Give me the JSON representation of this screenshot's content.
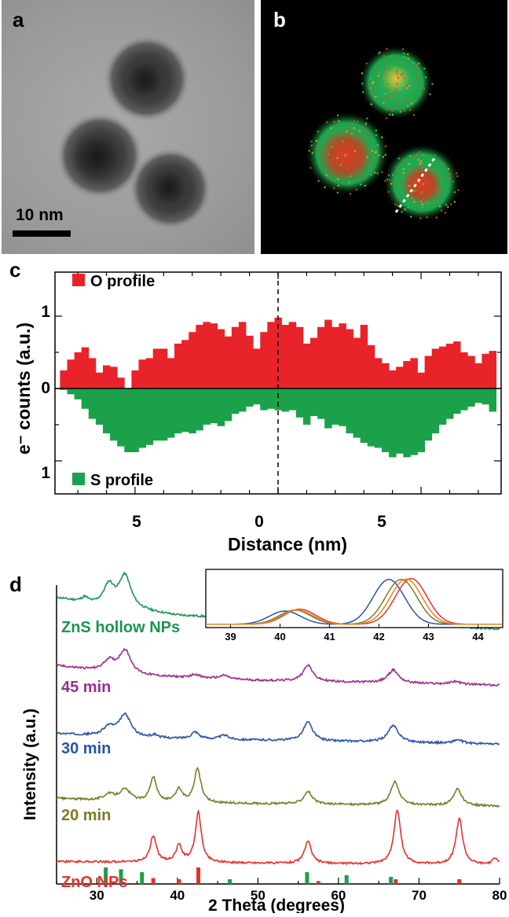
{
  "panel_a": {
    "letter": "a",
    "scale_bar_label": "10 nm"
  },
  "panel_b": {
    "letter": "b"
  },
  "chart_data": [
    {
      "panel": "c",
      "type": "bar",
      "xlabel": "Distance (nm)",
      "ylabel": "e⁻ counts (a.u.)",
      "x_tick_labels": [
        "5",
        "0",
        "5"
      ],
      "y_tick_labels": [
        "1",
        "0",
        "1"
      ],
      "xlim": [
        -7.8,
        7.8
      ],
      "colors": {
        "o": "#e8232a",
        "s": "#1aa14a"
      },
      "series": [
        {
          "name": "O profile",
          "x": [
            -7.5,
            -7.25,
            -7.0,
            -6.75,
            -6.5,
            -6.25,
            -6.0,
            -5.75,
            -5.5,
            -5.25,
            -5.0,
            -4.75,
            -4.5,
            -4.25,
            -4.0,
            -3.75,
            -3.5,
            -3.25,
            -3.0,
            -2.75,
            -2.5,
            -2.25,
            -2.0,
            -1.75,
            -1.5,
            -1.25,
            -1.0,
            -0.75,
            -0.5,
            -0.25,
            0.0,
            0.25,
            0.5,
            0.75,
            1.0,
            1.25,
            1.5,
            1.75,
            2.0,
            2.25,
            2.5,
            2.75,
            3.0,
            3.25,
            3.5,
            3.75,
            4.0,
            4.25,
            4.5,
            4.75,
            5.0,
            5.25,
            5.5,
            5.75,
            6.0,
            6.25,
            6.5,
            6.75,
            7.0,
            7.25,
            7.5
          ],
          "values": [
            0.25,
            0.4,
            0.5,
            0.57,
            0.42,
            0.22,
            0.32,
            0.3,
            0.15,
            0.0,
            0.25,
            0.4,
            0.42,
            0.55,
            0.55,
            0.42,
            0.62,
            0.67,
            0.78,
            0.88,
            0.92,
            0.9,
            0.82,
            0.72,
            0.85,
            0.92,
            0.73,
            0.55,
            0.78,
            0.92,
            0.98,
            0.88,
            0.92,
            0.85,
            0.62,
            0.7,
            0.85,
            0.95,
            0.85,
            0.9,
            0.82,
            0.7,
            0.88,
            0.6,
            0.42,
            0.35,
            0.25,
            0.3,
            0.38,
            0.42,
            0.22,
            0.45,
            0.55,
            0.58,
            0.62,
            0.65,
            0.5,
            0.45,
            0.35,
            0.48,
            0.52
          ]
        },
        {
          "name": "S profile",
          "x": [
            -7.5,
            -7.25,
            -7.0,
            -6.75,
            -6.5,
            -6.25,
            -6.0,
            -5.75,
            -5.5,
            -5.25,
            -5.0,
            -4.75,
            -4.5,
            -4.25,
            -4.0,
            -3.75,
            -3.5,
            -3.25,
            -3.0,
            -2.75,
            -2.5,
            -2.25,
            -2.0,
            -1.75,
            -1.5,
            -1.25,
            -1.0,
            -0.75,
            -0.5,
            -0.25,
            0.0,
            0.25,
            0.5,
            0.75,
            1.0,
            1.25,
            1.5,
            1.75,
            2.0,
            2.25,
            2.5,
            2.75,
            3.0,
            3.25,
            3.5,
            3.75,
            4.0,
            4.25,
            4.5,
            4.75,
            5.0,
            5.25,
            5.5,
            5.75,
            6.0,
            6.25,
            6.5,
            6.75,
            7.0,
            7.25,
            7.5
          ],
          "values": [
            0.02,
            0.08,
            0.15,
            0.28,
            0.42,
            0.5,
            0.62,
            0.72,
            0.8,
            0.88,
            0.88,
            0.82,
            0.78,
            0.72,
            0.72,
            0.68,
            0.62,
            0.6,
            0.62,
            0.58,
            0.5,
            0.48,
            0.52,
            0.45,
            0.35,
            0.32,
            0.25,
            0.22,
            0.3,
            0.28,
            0.3,
            0.32,
            0.3,
            0.4,
            0.5,
            0.38,
            0.42,
            0.55,
            0.5,
            0.52,
            0.62,
            0.68,
            0.75,
            0.8,
            0.82,
            0.88,
            0.95,
            0.9,
            0.95,
            0.92,
            0.88,
            0.72,
            0.62,
            0.5,
            0.42,
            0.35,
            0.3,
            0.25,
            0.2,
            0.22,
            0.32
          ]
        }
      ]
    },
    {
      "panel": "d",
      "type": "line",
      "xlabel": "2 Theta (degrees)",
      "ylabel": "Intensity (a.u.)",
      "xlim": [
        25,
        80
      ],
      "x_ticks": [
        30,
        40,
        50,
        60,
        70,
        80
      ],
      "series": [
        {
          "name": "ZnS hollow NPs",
          "color": "#1a9550",
          "offset": 4.3,
          "baseline": [
            [
              25,
              0.55
            ],
            [
              30,
              0.42
            ],
            [
              40,
              0.25
            ],
            [
              60,
              0.12
            ],
            [
              80,
              0.02
            ]
          ],
          "peaks": [
            [
              28.5,
              0.08,
              0.5
            ],
            [
              31.5,
              0.35,
              0.8
            ],
            [
              33.5,
              0.55,
              0.9
            ],
            [
              47.5,
              0.08,
              1.0
            ],
            [
              56.2,
              0.22,
              0.8
            ],
            [
              66.8,
              0.16,
              0.9
            ],
            [
              73.5,
              0.06,
              0.9
            ]
          ]
        },
        {
          "name": "45 min",
          "color": "#9a2f8e",
          "offset": 3.35,
          "baseline": [
            [
              25,
              0.35
            ],
            [
              35,
              0.18
            ],
            [
              50,
              0.1
            ],
            [
              80,
              0.02
            ]
          ],
          "peaks": [
            [
              31.5,
              0.18,
              0.8
            ],
            [
              33.5,
              0.4,
              0.9
            ],
            [
              42.2,
              0.06,
              0.6
            ],
            [
              45.8,
              0.06,
              0.7
            ],
            [
              56.2,
              0.28,
              0.7
            ],
            [
              66.8,
              0.22,
              0.8
            ],
            [
              74.5,
              0.05,
              0.7
            ]
          ]
        },
        {
          "name": "30 min",
          "color": "#2a53a8",
          "offset": 2.35,
          "baseline": [
            [
              25,
              0.2
            ],
            [
              35,
              0.12
            ],
            [
              80,
              0.02
            ]
          ],
          "peaks": [
            [
              31.5,
              0.15,
              0.8
            ],
            [
              33.5,
              0.38,
              0.9
            ],
            [
              37.2,
              0.05,
              0.5
            ],
            [
              42.2,
              0.12,
              0.6
            ],
            [
              45.8,
              0.07,
              0.7
            ],
            [
              56.2,
              0.32,
              0.7
            ],
            [
              66.8,
              0.28,
              0.8
            ],
            [
              74.8,
              0.06,
              0.7
            ]
          ]
        },
        {
          "name": "20 min",
          "color": "#7d7a2a",
          "offset": 1.3,
          "baseline": [
            [
              25,
              0.15
            ],
            [
              35,
              0.08
            ],
            [
              80,
              0.02
            ]
          ],
          "peaks": [
            [
              31.5,
              0.1,
              0.8
            ],
            [
              33.5,
              0.2,
              0.9
            ],
            [
              37.0,
              0.42,
              0.5
            ],
            [
              40.2,
              0.22,
              0.5
            ],
            [
              42.5,
              0.58,
              0.5
            ],
            [
              56.2,
              0.22,
              0.6
            ],
            [
              67.0,
              0.4,
              0.6
            ],
            [
              74.8,
              0.28,
              0.6
            ]
          ]
        },
        {
          "name": "ZnO NPs",
          "color": "#e8302b",
          "offset": 0.3,
          "baseline": [
            [
              25,
              0.08
            ],
            [
              80,
              0.02
            ]
          ],
          "peaks": [
            [
              37.0,
              0.45,
              0.45
            ],
            [
              40.2,
              0.28,
              0.45
            ],
            [
              42.6,
              0.85,
              0.45
            ],
            [
              56.2,
              0.38,
              0.5
            ],
            [
              67.3,
              0.92,
              0.5
            ],
            [
              75.0,
              0.78,
              0.5
            ],
            [
              79.5,
              0.12,
              0.4
            ]
          ]
        }
      ],
      "reference_lines": {
        "green": {
          "color": "#1aa14a",
          "positions": [
            31.1,
            33.0,
            35.6,
            46.5,
            56.1,
            61.0,
            66.5
          ],
          "heights": [
            0.28,
            0.25,
            0.2,
            0.08,
            0.2,
            0.15,
            0.12
          ]
        },
        "red": {
          "color": "#e8302b",
          "positions": [
            37.0,
            40.2,
            42.6,
            57.5,
            67.1,
            75.0
          ],
          "heights": [
            0.1,
            0.08,
            0.28,
            0.05,
            0.08,
            0.08
          ]
        }
      },
      "inset": {
        "xlim": [
          38.5,
          44.5
        ],
        "x_ticks": [
          39,
          40,
          41,
          42,
          43,
          44
        ],
        "series": [
          {
            "color": "#2a53a8",
            "peaks": [
              [
                40.1,
                0.28,
                0.45
              ],
              [
                42.2,
                0.95,
                0.45
              ]
            ]
          },
          {
            "color": "#7d7a2a",
            "peaks": [
              [
                40.3,
                0.3,
                0.45
              ],
              [
                42.45,
                0.95,
                0.45
              ]
            ]
          },
          {
            "color": "#e8302b",
            "peaks": [
              [
                40.4,
                0.32,
                0.45
              ],
              [
                42.65,
                0.97,
                0.45
              ]
            ]
          },
          {
            "color": "#e8841f",
            "peaks": [
              [
                40.35,
                0.3,
                0.45
              ],
              [
                42.55,
                0.96,
                0.45
              ]
            ]
          }
        ]
      }
    }
  ],
  "panel_c": {
    "letter": "c"
  },
  "panel_d": {
    "letter": "d"
  }
}
